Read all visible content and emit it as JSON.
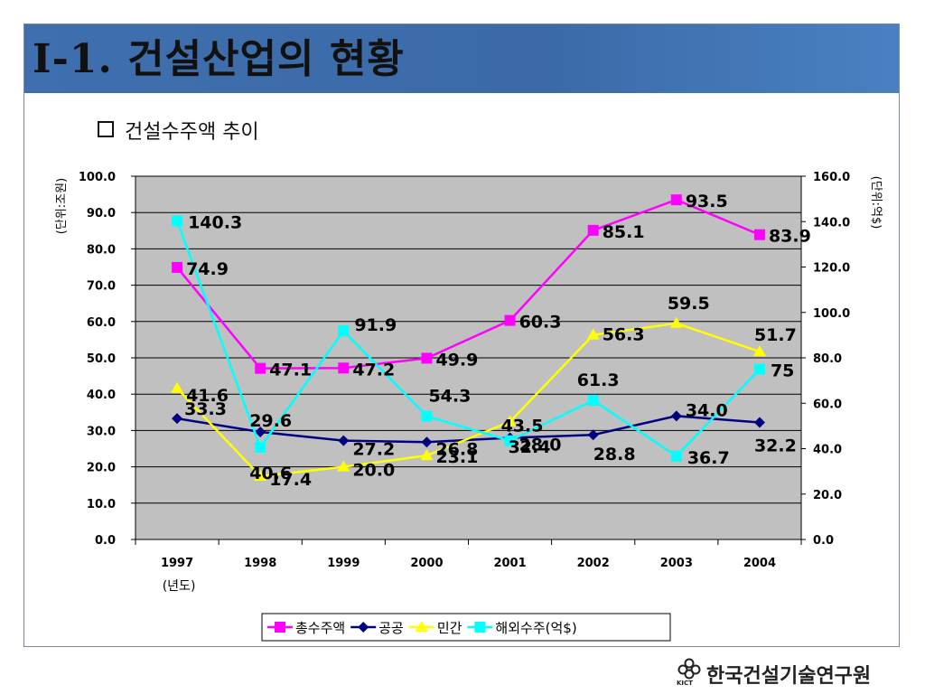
{
  "slide": {
    "title": "I-1. 건설산업의 현황",
    "subtitle": "건설수주액 추이",
    "org_name": "한국건설기술연구원",
    "org_abbr": "KICT"
  },
  "chart_data": {
    "type": "line",
    "categories": [
      "1997",
      "1998",
      "1999",
      "2000",
      "2001",
      "2002",
      "2003",
      "2004"
    ],
    "xlabel": "(년도)",
    "ylabel_left": "(단위:조원)",
    "ylabel_right": "(단위:억$)",
    "ylim_left": [
      0,
      100
    ],
    "ylim_right": [
      0,
      160
    ],
    "yticks_left": [
      "0.0",
      "10.0",
      "20.0",
      "30.0",
      "40.0",
      "50.0",
      "60.0",
      "70.0",
      "80.0",
      "90.0",
      "100.0"
    ],
    "yticks_right": [
      "0.0",
      "20.0",
      "40.0",
      "60.0",
      "80.0",
      "100.0",
      "120.0",
      "140.0",
      "160.0"
    ],
    "grid": true,
    "legend_position": "bottom",
    "series": [
      {
        "name": "총수주액",
        "axis": "left",
        "marker": "square",
        "color": "#ff00ff",
        "values": [
          74.9,
          47.1,
          47.2,
          49.9,
          60.3,
          85.1,
          93.5,
          83.9
        ],
        "labels": [
          "74.9",
          "47.1",
          "47.2",
          "49.9",
          "60.3",
          "85.1",
          "93.5",
          "83.9"
        ]
      },
      {
        "name": "공공",
        "axis": "left",
        "marker": "diamond",
        "color": "#000080",
        "values": [
          33.3,
          29.6,
          27.2,
          26.8,
          28.0,
          28.8,
          34.0,
          32.2
        ],
        "labels": [
          "33.3",
          "29.6",
          "27.2",
          "26.8",
          "28.0",
          "28.8",
          "34.0",
          "32.2"
        ]
      },
      {
        "name": "민간",
        "axis": "left",
        "marker": "triangle",
        "color": "#ffff00",
        "values": [
          41.6,
          17.4,
          20.0,
          23.1,
          32.4,
          56.3,
          59.5,
          51.7
        ],
        "labels": [
          "41.6",
          "17.4",
          "20.0",
          "23.1",
          "32.4",
          "56.3",
          "59.5",
          "51.7"
        ]
      },
      {
        "name": "해외수주(억$)",
        "axis": "right",
        "marker": "square",
        "color": "#00ffff",
        "values": [
          140.3,
          40.6,
          91.9,
          54.3,
          43.5,
          61.3,
          36.7,
          75
        ],
        "labels": [
          "140.3",
          "40.6",
          "91.9",
          "54.3",
          "43.5",
          "61.3",
          "36.7",
          "75"
        ]
      }
    ]
  }
}
